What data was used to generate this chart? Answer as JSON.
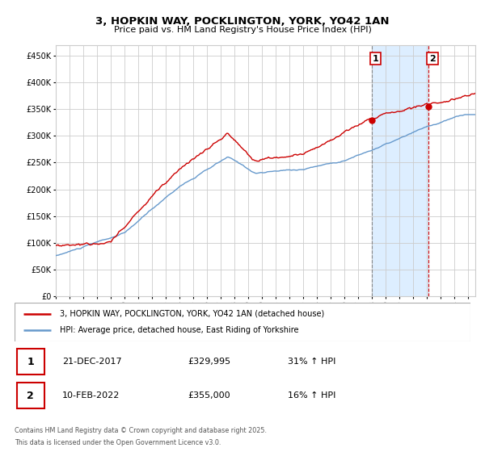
{
  "title": "3, HOPKIN WAY, POCKLINGTON, YORK, YO42 1AN",
  "subtitle": "Price paid vs. HM Land Registry's House Price Index (HPI)",
  "legend_line1": "3, HOPKIN WAY, POCKLINGTON, YORK, YO42 1AN (detached house)",
  "legend_line2": "HPI: Average price, detached house, East Riding of Yorkshire",
  "annotation1_label": "1",
  "annotation1_date": "21-DEC-2017",
  "annotation1_price": "£329,995",
  "annotation1_hpi": "31% ↑ HPI",
  "annotation2_label": "2",
  "annotation2_date": "10-FEB-2022",
  "annotation2_price": "£355,000",
  "annotation2_hpi": "16% ↑ HPI",
  "footer_line1": "Contains HM Land Registry data © Crown copyright and database right 2025.",
  "footer_line2": "This data is licensed under the Open Government Licence v3.0.",
  "red_color": "#cc0000",
  "blue_color": "#6699cc",
  "shade_color": "#ddeeff",
  "grid_color": "#cccccc",
  "vline1_color": "#888888",
  "vline2_color": "#cc0000",
  "background_color": "#ffffff",
  "ylim_min": 0,
  "ylim_max": 470000,
  "sale1_year": 2017.97,
  "sale2_year": 2022.11,
  "sale1_price": 329995,
  "sale2_price": 355000,
  "xlim_min": 1995,
  "xlim_max": 2025.5
}
